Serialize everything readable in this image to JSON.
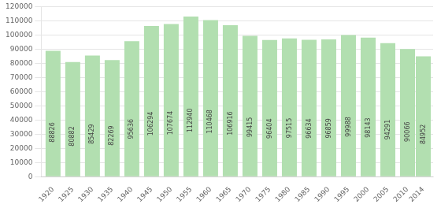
{
  "chart_data": {
    "type": "bar",
    "x": [
      1920,
      1925,
      1930,
      1935,
      1940,
      1945,
      1950,
      1955,
      1960,
      1965,
      1970,
      1975,
      1980,
      1985,
      1990,
      1995,
      2000,
      2005,
      2010,
      2014
    ],
    "values": [
      88826,
      80882,
      85429,
      82269,
      95636,
      106294,
      107674,
      112940,
      110468,
      106916,
      99415,
      96404,
      97515,
      96634,
      96859,
      99988,
      98143,
      94291,
      90066,
      84952
    ],
    "color": "#b2dfb0",
    "xlim": [
      1917,
      2016.5
    ],
    "xticks": [
      1920,
      1925,
      1930,
      1935,
      1940,
      1945,
      1950,
      1955,
      1960,
      1965,
      1970,
      1975,
      1980,
      1985,
      1990,
      1995,
      2000,
      2005,
      2010,
      2014
    ],
    "ylim": [
      0,
      120000
    ],
    "yticks": [
      0,
      10000,
      20000,
      30000,
      40000,
      50000,
      60000,
      70000,
      80000,
      90000,
      100000,
      110000,
      120000
    ],
    "grid": true,
    "data_labels": true
  }
}
